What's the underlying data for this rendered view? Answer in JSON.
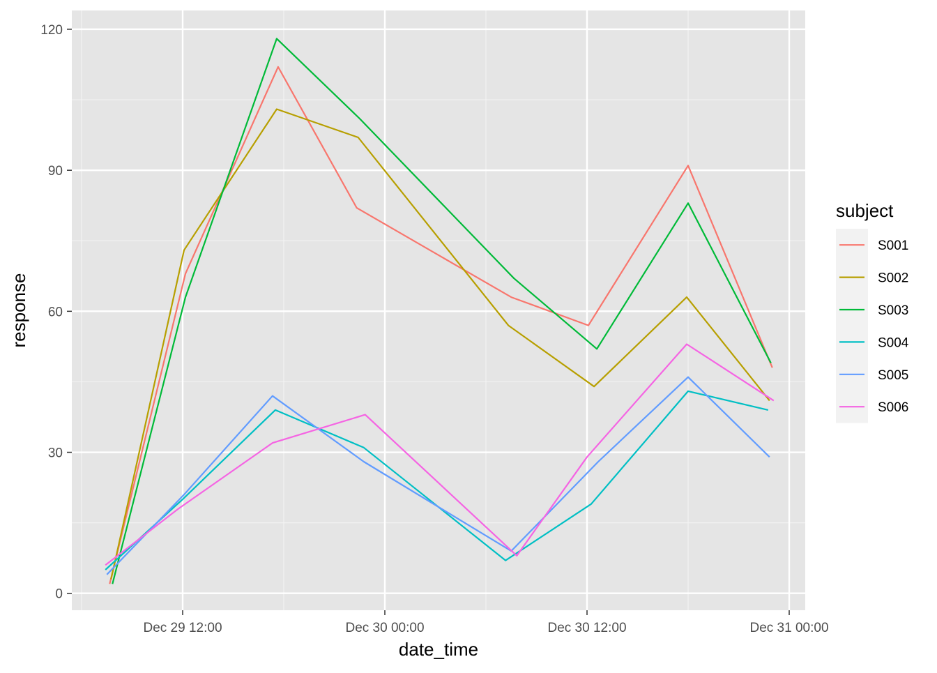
{
  "chart_data": {
    "type": "line",
    "xlabel": "date_time",
    "ylabel": "response",
    "x_ticks": [
      "Dec 29 12:00",
      "Dec 30 00:00",
      "Dec 30 12:00",
      "Dec 31 00:00"
    ],
    "y_ticks": [
      0,
      30,
      60,
      90,
      120
    ],
    "ylim": [
      -3.6,
      124
    ],
    "grid": true,
    "legend": {
      "title": "subject",
      "position": "right"
    },
    "panel_background": "#e5e5e5",
    "series": [
      {
        "name": "S001",
        "color": "#F8766D",
        "points": [
          {
            "x": "2024-12-29 07:40",
            "y": 2
          },
          {
            "x": "2024-12-29 12:10",
            "y": 68
          },
          {
            "x": "2024-12-29 17:40",
            "y": 112
          },
          {
            "x": "2024-12-29 22:20",
            "y": 82
          },
          {
            "x": "2024-12-30 07:30",
            "y": 63
          },
          {
            "x": "2024-12-30 12:05",
            "y": 57
          },
          {
            "x": "2024-12-30 18:00",
            "y": 91
          },
          {
            "x": "2024-12-30 23:00",
            "y": 48
          }
        ]
      },
      {
        "name": "S002",
        "color": "#B79F00",
        "points": [
          {
            "x": "2024-12-29 07:45",
            "y": 3
          },
          {
            "x": "2024-12-29 12:05",
            "y": 73
          },
          {
            "x": "2024-12-29 17:35",
            "y": 103
          },
          {
            "x": "2024-12-29 22:25",
            "y": 97
          },
          {
            "x": "2024-12-30 07:20",
            "y": 57
          },
          {
            "x": "2024-12-30 12:25",
            "y": 44
          },
          {
            "x": "2024-12-30 17:55",
            "y": 63
          },
          {
            "x": "2024-12-30 22:50",
            "y": 41
          }
        ]
      },
      {
        "name": "S003",
        "color": "#00BA38",
        "points": [
          {
            "x": "2024-12-29 07:50",
            "y": 2
          },
          {
            "x": "2024-12-29 12:10",
            "y": 63
          },
          {
            "x": "2024-12-29 17:35",
            "y": 118
          },
          {
            "x": "2024-12-29 22:30",
            "y": 101
          },
          {
            "x": "2024-12-30 07:40",
            "y": 67
          },
          {
            "x": "2024-12-30 12:35",
            "y": 52
          },
          {
            "x": "2024-12-30 18:00",
            "y": 83
          },
          {
            "x": "2024-12-30 22:55",
            "y": 49
          }
        ]
      },
      {
        "name": "S004",
        "color": "#00BFC4",
        "points": [
          {
            "x": "2024-12-29 07:25",
            "y": 5
          },
          {
            "x": "2024-12-29 12:00",
            "y": 20
          },
          {
            "x": "2024-12-29 17:30",
            "y": 39
          },
          {
            "x": "2024-12-29 22:45",
            "y": 31
          },
          {
            "x": "2024-12-30 07:10",
            "y": 7
          },
          {
            "x": "2024-12-30 12:15",
            "y": 19
          },
          {
            "x": "2024-12-30 18:00",
            "y": 43
          },
          {
            "x": "2024-12-30 22:45",
            "y": 39
          }
        ]
      },
      {
        "name": "S005",
        "color": "#619CFF",
        "points": [
          {
            "x": "2024-12-29 07:30",
            "y": 4
          },
          {
            "x": "2024-12-29 12:05",
            "y": 21
          },
          {
            "x": "2024-12-29 17:20",
            "y": 42
          },
          {
            "x": "2024-12-29 22:45",
            "y": 28
          },
          {
            "x": "2024-12-30 07:30",
            "y": 9
          },
          {
            "x": "2024-12-30 12:40",
            "y": 28
          },
          {
            "x": "2024-12-30 18:00",
            "y": 46
          },
          {
            "x": "2024-12-30 22:50",
            "y": 29
          }
        ]
      },
      {
        "name": "S006",
        "color": "#F564E3",
        "points": [
          {
            "x": "2024-12-29 07:25",
            "y": 6
          },
          {
            "x": "2024-12-29 11:45",
            "y": 18
          },
          {
            "x": "2024-12-29 17:20",
            "y": 32
          },
          {
            "x": "2024-12-29 22:50",
            "y": 38
          },
          {
            "x": "2024-12-30 07:50",
            "y": 8
          },
          {
            "x": "2024-12-30 12:00",
            "y": 29
          },
          {
            "x": "2024-12-30 17:55",
            "y": 53
          },
          {
            "x": "2024-12-30 23:05",
            "y": 41
          }
        ]
      }
    ]
  }
}
